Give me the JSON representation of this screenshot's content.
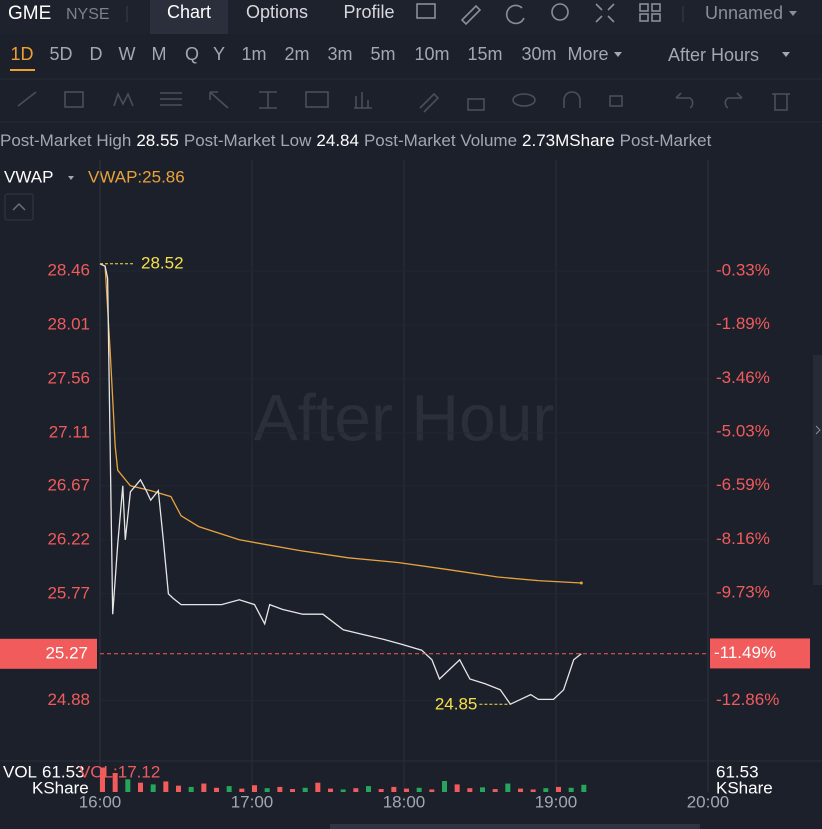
{
  "header": {
    "symbol": "GME",
    "exchange": "NYSE",
    "tabs": [
      "Chart",
      "Options",
      "Profile"
    ],
    "layout": "Unnamed"
  },
  "timeframes": [
    "1D",
    "5D",
    "D",
    "W",
    "M",
    "Q",
    "Y",
    "1m",
    "2m",
    "3m",
    "5m",
    "10m",
    "15m",
    "30m",
    "More"
  ],
  "session": "After Hours",
  "stats": [
    {
      "label": "Post-Market High",
      "value": 28.55
    },
    {
      "label": "Post-Market Low",
      "value": 24.84
    },
    {
      "label": "Post-Market Volume",
      "value": "2.73MShare"
    },
    {
      "label": "Post-Market"
    }
  ],
  "chart_data": {
    "type": "line",
    "watermark": "After Hour",
    "xlim": [
      "16:00",
      "20:00"
    ],
    "xticks": [
      "16:00",
      "17:00",
      "18:00",
      "19:00",
      "20:00"
    ],
    "ylim": [
      24.385,
      29.385
    ],
    "yticks": [
      28.46,
      28.01,
      27.56,
      27.11,
      26.67,
      26.22,
      25.77,
      24.88
    ],
    "y2lim": [
      -14.6,
      2.91
    ],
    "y2ticks": [
      {
        "value": -0.33,
        "label": "-0.33%"
      },
      {
        "value": -1.89,
        "label": "-1.89%"
      },
      {
        "value": -3.46,
        "label": "-3.46%"
      },
      {
        "value": -5.03,
        "label": "-5.03%"
      },
      {
        "value": -6.59,
        "label": "-6.59%"
      },
      {
        "value": -8.16,
        "label": "-8.16%"
      },
      {
        "value": -9.73,
        "label": "-9.73%"
      },
      {
        "value": -12.86,
        "label": "-12.86%"
      }
    ],
    "grid": true,
    "price": {
      "color": "#e6e6e6",
      "x": [
        "16:00",
        "16:02",
        "16:03",
        "16:05",
        "16:07",
        "16:09",
        "16:10",
        "16:12",
        "16:14",
        "16:16",
        "16:18",
        "16:20",
        "16:23",
        "16:25",
        "16:27",
        "16:29",
        "16:32",
        "16:40",
        "16:48",
        "16:55",
        "17:01",
        "17:05",
        "17:07",
        "17:12",
        "17:20",
        "17:28",
        "17:36",
        "17:44",
        "17:52",
        "17:59",
        "18:07",
        "18:11",
        "18:14",
        "18:18",
        "18:22",
        "18:26",
        "18:32",
        "18:38",
        "18:42",
        "18:46",
        "18:50",
        "18:53",
        "18:59",
        "19:03",
        "19:07",
        "19:10"
      ],
      "values": [
        28.52,
        28.5,
        28.4,
        25.6,
        26.18,
        26.67,
        26.22,
        26.62,
        26.67,
        26.72,
        26.64,
        26.55,
        26.63,
        26.22,
        25.77,
        25.73,
        25.68,
        25.68,
        25.68,
        25.72,
        25.68,
        25.52,
        25.68,
        25.64,
        25.6,
        25.6,
        25.47,
        25.43,
        25.39,
        25.35,
        25.3,
        25.22,
        25.06,
        25.14,
        25.22,
        25.06,
        25.02,
        24.97,
        24.85,
        24.89,
        24.93,
        24.89,
        24.89,
        24.97,
        25.22,
        25.27
      ]
    },
    "vwap": {
      "name": "VWAP",
      "value_label": "VWAP:25.86",
      "value": 25.86,
      "color": "#e8a33d",
      "x": [
        "16:00",
        "16:02",
        "16:04",
        "16:06",
        "16:07",
        "16:12",
        "16:20",
        "16:28",
        "16:32",
        "16:39",
        "16:55",
        "17:19",
        "17:38",
        "17:58",
        "18:18",
        "18:37",
        "18:53",
        "19:10"
      ],
      "values": [
        28.52,
        28.5,
        27.8,
        27.0,
        26.8,
        26.67,
        26.63,
        26.58,
        26.42,
        26.33,
        26.22,
        26.13,
        26.07,
        26.03,
        25.97,
        25.91,
        25.88,
        25.86
      ]
    },
    "high": 28.52,
    "low": 24.85,
    "last_price": 25.27,
    "last_change": {
      "value": -11.49,
      "label": "-11.49%"
    },
    "volume": {
      "title": "VOL",
      "max": 61.53,
      "unit": "KShare",
      "current_label": "VOL:17.12",
      "x": [
        "16:00",
        "16:05",
        "16:10",
        "16:15",
        "16:20",
        "16:25",
        "16:30",
        "16:35",
        "16:40",
        "16:45",
        "16:50",
        "16:55",
        "17:00",
        "17:05",
        "17:10",
        "17:15",
        "17:20",
        "17:25",
        "17:30",
        "17:35",
        "17:40",
        "17:45",
        "17:50",
        "17:55",
        "18:00",
        "18:05",
        "18:10",
        "18:15",
        "18:20",
        "18:25",
        "18:30",
        "18:35",
        "18:40",
        "18:45",
        "18:50",
        "18:55",
        "19:00",
        "19:05",
        "19:10"
      ],
      "values": [
        58,
        45,
        30,
        22,
        18,
        25,
        15,
        12,
        20,
        10,
        14,
        8,
        16,
        9,
        12,
        7,
        10,
        22,
        8,
        6,
        9,
        14,
        7,
        12,
        8,
        10,
        6,
        26,
        18,
        9,
        11,
        7,
        20,
        8,
        6,
        9,
        12,
        10,
        17.12
      ],
      "colors": [
        "#f15b5b",
        "#f15b5b",
        "#26a65b",
        "#f15b5b",
        "#26a65b",
        "#f15b5b",
        "#f15b5b",
        "#26a65b",
        "#f15b5b",
        "#f15b5b",
        "#26a65b",
        "#f15b5b",
        "#f15b5b",
        "#26a65b",
        "#f15b5b",
        "#f15b5b",
        "#26a65b",
        "#f15b5b",
        "#f15b5b",
        "#26a65b",
        "#f15b5b",
        "#26a65b",
        "#f15b5b",
        "#f15b5b",
        "#f15b5b",
        "#26a65b",
        "#f15b5b",
        "#26a65b",
        "#f15b5b",
        "#f15b5b",
        "#26a65b",
        "#f15b5b",
        "#26a65b",
        "#f15b5b",
        "#f15b5b",
        "#26a65b",
        "#f15b5b",
        "#26a65b",
        "#26a65b"
      ]
    }
  }
}
